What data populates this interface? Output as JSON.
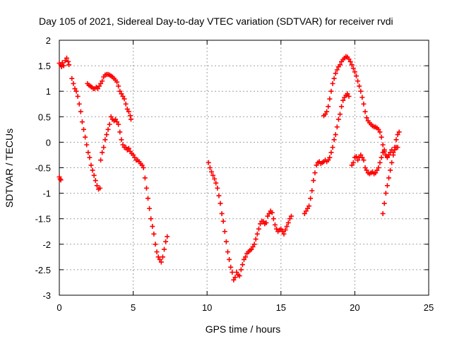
{
  "chart_data": {
    "type": "scatter",
    "title": "Day 105 of 2021, Sidereal Day-to-day VTEC variation (SDTVAR) for receiver rvdi",
    "xlabel": "GPS time / hours",
    "ylabel": "SDTVAR / TECUs",
    "xlim": [
      0,
      25
    ],
    "ylim": [
      -3,
      2
    ],
    "xticks": [
      "0",
      "5",
      "10",
      "15",
      "20",
      "25"
    ],
    "yticks": [
      "2",
      "1.5",
      "1",
      "0.5",
      "0",
      "-0.5",
      "-1",
      "-1.5",
      "-2",
      "-2.5",
      "-3"
    ],
    "grid": true,
    "marker": "+",
    "color": "#ff0000",
    "series": [
      {
        "points": [
          [
            0.0,
            -0.68
          ],
          [
            0.05,
            -0.72
          ],
          [
            0.1,
            -0.74
          ]
        ]
      },
      {
        "points": [
          [
            0.0,
            1.55
          ],
          [
            0.1,
            1.52
          ],
          [
            0.15,
            1.48
          ],
          [
            0.2,
            1.56
          ],
          [
            0.3,
            1.5
          ],
          [
            0.4,
            1.6
          ],
          [
            0.5,
            1.65
          ],
          [
            0.6,
            1.58
          ],
          [
            0.65,
            1.52
          ]
        ]
      },
      {
        "points": [
          [
            0.85,
            1.25
          ],
          [
            0.95,
            1.15
          ],
          [
            1.05,
            1.05
          ],
          [
            1.15,
            1.0
          ],
          [
            1.25,
            0.9
          ],
          [
            1.35,
            0.75
          ],
          [
            1.45,
            0.6
          ],
          [
            1.55,
            0.4
          ],
          [
            1.65,
            0.25
          ],
          [
            1.75,
            0.1
          ],
          [
            1.85,
            -0.05
          ],
          [
            1.95,
            -0.2
          ],
          [
            2.05,
            -0.3
          ],
          [
            2.15,
            -0.45
          ],
          [
            2.25,
            -0.55
          ],
          [
            2.35,
            -0.65
          ],
          [
            2.45,
            -0.75
          ],
          [
            2.55,
            -0.85
          ],
          [
            2.65,
            -0.92
          ],
          [
            2.75,
            -0.9
          ]
        ]
      },
      {
        "points": [
          [
            1.9,
            1.15
          ],
          [
            2.0,
            1.12
          ],
          [
            2.1,
            1.1
          ],
          [
            2.2,
            1.08
          ],
          [
            2.3,
            1.05
          ],
          [
            2.4,
            1.05
          ],
          [
            2.5,
            1.08
          ],
          [
            2.6,
            1.05
          ],
          [
            2.7,
            1.1
          ],
          [
            2.8,
            1.15
          ],
          [
            2.9,
            1.2
          ],
          [
            3.0,
            1.28
          ],
          [
            3.1,
            1.32
          ],
          [
            3.2,
            1.33
          ],
          [
            3.3,
            1.33
          ],
          [
            3.4,
            1.32
          ],
          [
            3.5,
            1.3
          ],
          [
            3.6,
            1.28
          ],
          [
            3.7,
            1.25
          ],
          [
            3.8,
            1.22
          ],
          [
            3.9,
            1.18
          ],
          [
            4.0,
            1.1
          ],
          [
            4.1,
            1.0
          ],
          [
            4.2,
            0.95
          ],
          [
            4.3,
            0.9
          ],
          [
            4.4,
            0.85
          ],
          [
            4.5,
            0.75
          ],
          [
            4.6,
            0.65
          ],
          [
            4.7,
            0.6
          ],
          [
            4.8,
            0.52
          ],
          [
            4.85,
            0.45
          ]
        ]
      },
      {
        "points": [
          [
            2.8,
            -0.35
          ],
          [
            2.9,
            -0.2
          ],
          [
            3.0,
            -0.1
          ],
          [
            3.1,
            0.05
          ],
          [
            3.2,
            0.15
          ],
          [
            3.3,
            0.25
          ],
          [
            3.4,
            0.35
          ],
          [
            3.5,
            0.5
          ],
          [
            3.6,
            0.45
          ],
          [
            3.7,
            0.42
          ],
          [
            3.8,
            0.45
          ],
          [
            3.9,
            0.4
          ],
          [
            4.0,
            0.35
          ],
          [
            4.1,
            0.2
          ],
          [
            4.2,
            0.05
          ],
          [
            4.3,
            -0.05
          ],
          [
            4.4,
            -0.1
          ],
          [
            4.5,
            -0.1
          ],
          [
            4.6,
            -0.15
          ],
          [
            4.7,
            -0.12
          ],
          [
            4.8,
            -0.18
          ],
          [
            4.9,
            -0.22
          ],
          [
            5.0,
            -0.25
          ],
          [
            5.1,
            -0.3
          ],
          [
            5.2,
            -0.35
          ],
          [
            5.3,
            -0.35
          ],
          [
            5.4,
            -0.38
          ],
          [
            5.5,
            -0.42
          ],
          [
            5.6,
            -0.45
          ],
          [
            5.7,
            -0.5
          ],
          [
            5.8,
            -0.7
          ],
          [
            5.9,
            -0.9
          ],
          [
            6.0,
            -1.1
          ],
          [
            6.1,
            -1.3
          ],
          [
            6.2,
            -1.5
          ],
          [
            6.3,
            -1.65
          ],
          [
            6.4,
            -1.8
          ],
          [
            6.5,
            -2.0
          ],
          [
            6.6,
            -2.15
          ],
          [
            6.7,
            -2.25
          ],
          [
            6.8,
            -2.3
          ],
          [
            6.9,
            -2.35
          ],
          [
            7.0,
            -2.25
          ],
          [
            7.1,
            -2.1
          ],
          [
            7.2,
            -1.95
          ],
          [
            7.3,
            -1.85
          ]
        ]
      },
      {
        "points": [
          [
            10.1,
            -0.4
          ],
          [
            10.2,
            -0.5
          ],
          [
            10.3,
            -0.58
          ],
          [
            10.4,
            -0.65
          ],
          [
            10.5,
            -0.72
          ],
          [
            10.6,
            -0.8
          ],
          [
            10.7,
            -0.9
          ],
          [
            10.8,
            -1.05
          ],
          [
            10.9,
            -1.2
          ],
          [
            11.0,
            -1.4
          ],
          [
            11.1,
            -1.55
          ],
          [
            11.2,
            -1.75
          ],
          [
            11.3,
            -1.95
          ],
          [
            11.4,
            -2.15
          ],
          [
            11.5,
            -2.3
          ],
          [
            11.6,
            -2.45
          ],
          [
            11.7,
            -2.55
          ],
          [
            11.8,
            -2.7
          ],
          [
            11.9,
            -2.65
          ],
          [
            12.0,
            -2.55
          ],
          [
            12.1,
            -2.6
          ],
          [
            12.2,
            -2.62
          ],
          [
            12.3,
            -2.5
          ],
          [
            12.4,
            -2.4
          ],
          [
            12.5,
            -2.3
          ],
          [
            12.6,
            -2.25
          ],
          [
            12.7,
            -2.18
          ],
          [
            12.8,
            -2.15
          ],
          [
            12.9,
            -2.12
          ],
          [
            13.0,
            -2.1
          ],
          [
            13.1,
            -2.05
          ],
          [
            13.2,
            -2.0
          ],
          [
            13.3,
            -1.9
          ],
          [
            13.4,
            -1.8
          ],
          [
            13.5,
            -1.7
          ],
          [
            13.6,
            -1.6
          ],
          [
            13.7,
            -1.55
          ],
          [
            13.8,
            -1.55
          ],
          [
            13.9,
            -1.6
          ],
          [
            14.0,
            -1.58
          ],
          [
            14.1,
            -1.45
          ],
          [
            14.2,
            -1.4
          ],
          [
            14.3,
            -1.35
          ],
          [
            14.4,
            -1.38
          ],
          [
            14.5,
            -1.5
          ],
          [
            14.6,
            -1.62
          ],
          [
            14.7,
            -1.7
          ],
          [
            14.8,
            -1.75
          ],
          [
            14.9,
            -1.72
          ],
          [
            15.0,
            -1.7
          ],
          [
            15.1,
            -1.75
          ],
          [
            15.2,
            -1.8
          ],
          [
            15.3,
            -1.72
          ],
          [
            15.4,
            -1.65
          ],
          [
            15.5,
            -1.58
          ],
          [
            15.6,
            -1.5
          ],
          [
            15.7,
            -1.45
          ]
        ]
      },
      {
        "points": [
          [
            16.6,
            -1.4
          ],
          [
            16.7,
            -1.35
          ],
          [
            16.8,
            -1.3
          ],
          [
            16.9,
            -1.25
          ],
          [
            17.0,
            -1.1
          ],
          [
            17.1,
            -0.95
          ],
          [
            17.2,
            -0.75
          ],
          [
            17.3,
            -0.6
          ],
          [
            17.4,
            -0.45
          ],
          [
            17.5,
            -0.4
          ],
          [
            17.6,
            -0.38
          ],
          [
            17.7,
            -0.42
          ],
          [
            17.8,
            -0.4
          ],
          [
            17.9,
            -0.38
          ],
          [
            18.0,
            -0.35
          ],
          [
            18.1,
            -0.38
          ],
          [
            18.2,
            -0.35
          ],
          [
            18.3,
            -0.3
          ],
          [
            18.4,
            -0.2
          ],
          [
            18.5,
            -0.1
          ],
          [
            18.6,
            0.05
          ],
          [
            18.7,
            0.15
          ],
          [
            18.8,
            0.3
          ],
          [
            18.9,
            0.45
          ],
          [
            19.0,
            0.55
          ],
          [
            19.1,
            0.7
          ],
          [
            19.2,
            0.82
          ],
          [
            19.3,
            0.88
          ],
          [
            19.4,
            0.92
          ],
          [
            19.5,
            0.95
          ],
          [
            19.6,
            0.9
          ]
        ]
      },
      {
        "points": [
          [
            17.9,
            0.52
          ],
          [
            18.0,
            0.55
          ],
          [
            18.1,
            0.6
          ],
          [
            18.2,
            0.7
          ],
          [
            18.3,
            0.85
          ],
          [
            18.4,
            1.0
          ],
          [
            18.5,
            1.15
          ],
          [
            18.6,
            1.25
          ],
          [
            18.7,
            1.35
          ],
          [
            18.8,
            1.42
          ],
          [
            18.9,
            1.48
          ],
          [
            19.0,
            1.52
          ],
          [
            19.1,
            1.58
          ],
          [
            19.2,
            1.62
          ],
          [
            19.3,
            1.65
          ],
          [
            19.4,
            1.68
          ],
          [
            19.5,
            1.67
          ],
          [
            19.6,
            1.63
          ],
          [
            19.7,
            1.58
          ],
          [
            19.8,
            1.52
          ],
          [
            19.9,
            1.45
          ],
          [
            20.0,
            1.38
          ],
          [
            20.1,
            1.3
          ],
          [
            20.2,
            1.2
          ],
          [
            20.3,
            1.1
          ],
          [
            20.4,
            1.0
          ],
          [
            20.5,
            0.88
          ],
          [
            20.6,
            0.75
          ],
          [
            20.7,
            0.6
          ],
          [
            20.8,
            0.48
          ],
          [
            20.9,
            0.42
          ],
          [
            21.0,
            0.38
          ],
          [
            21.1,
            0.35
          ],
          [
            21.2,
            0.32
          ],
          [
            21.3,
            0.3
          ],
          [
            21.4,
            0.3
          ],
          [
            21.5,
            0.28
          ],
          [
            21.6,
            0.25
          ],
          [
            21.7,
            0.2
          ],
          [
            21.8,
            0.1
          ],
          [
            21.9,
            -0.05
          ],
          [
            22.0,
            -0.15
          ],
          [
            22.1,
            -0.25
          ],
          [
            22.2,
            -0.28
          ]
        ]
      },
      {
        "points": [
          [
            19.8,
            -0.45
          ],
          [
            19.9,
            -0.4
          ],
          [
            20.0,
            -0.3
          ],
          [
            20.1,
            -0.28
          ],
          [
            20.2,
            -0.35
          ],
          [
            20.3,
            -0.3
          ],
          [
            20.4,
            -0.25
          ],
          [
            20.5,
            -0.3
          ],
          [
            20.6,
            -0.35
          ],
          [
            20.7,
            -0.5
          ],
          [
            20.8,
            -0.55
          ],
          [
            20.9,
            -0.6
          ],
          [
            21.0,
            -0.62
          ],
          [
            21.1,
            -0.6
          ],
          [
            21.2,
            -0.58
          ],
          [
            21.3,
            -0.62
          ],
          [
            21.4,
            -0.6
          ],
          [
            21.5,
            -0.55
          ],
          [
            21.6,
            -0.5
          ],
          [
            21.7,
            -0.4
          ],
          [
            21.8,
            -0.3
          ],
          [
            21.9,
            -0.2
          ],
          [
            22.0,
            -0.18
          ],
          [
            22.1,
            -0.25
          ],
          [
            22.2,
            -0.3
          ],
          [
            22.3,
            -0.25
          ],
          [
            22.4,
            -0.2
          ],
          [
            22.5,
            -0.15
          ],
          [
            22.6,
            -0.2
          ],
          [
            22.7,
            -0.15
          ],
          [
            22.8,
            -0.1
          ],
          [
            22.9,
            -0.1
          ]
        ]
      },
      {
        "points": [
          [
            21.9,
            -1.4
          ],
          [
            22.0,
            -1.2
          ],
          [
            22.1,
            -1.0
          ],
          [
            22.2,
            -0.85
          ],
          [
            22.3,
            -0.7
          ],
          [
            22.4,
            -0.55
          ],
          [
            22.5,
            -0.4
          ],
          [
            22.6,
            -0.25
          ],
          [
            22.7,
            -0.1
          ],
          [
            22.8,
            0.05
          ],
          [
            22.9,
            0.15
          ],
          [
            23.0,
            0.2
          ]
        ]
      }
    ]
  }
}
